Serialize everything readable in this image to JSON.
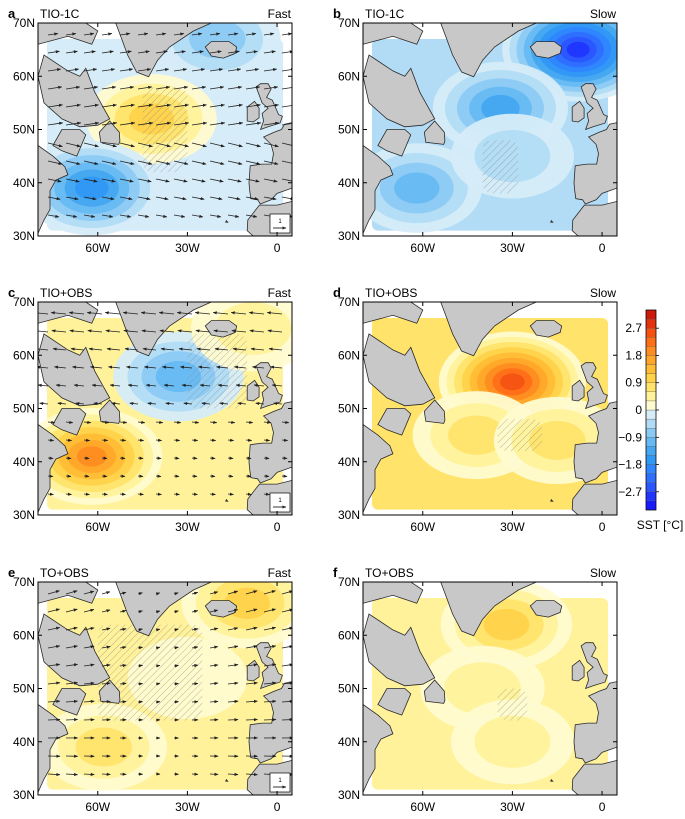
{
  "colors": {
    "land": "#c8c8c8",
    "coast": "#2a2a2a",
    "frame": "#000000",
    "hatch": "#8c8c8c",
    "arrow": "#222222"
  },
  "chart_data": {
    "type": "map-contour",
    "panels": [
      {
        "id": "a",
        "title": "TIO-1C",
        "mode": "Fast",
        "field": "SST response with surface wind vectors",
        "vectors": true,
        "ref_vector": "1",
        "anomalies": [
          {
            "lon": -42,
            "lat": 52,
            "value": 1.2
          },
          {
            "lon": -62,
            "lat": 39,
            "value": -1.8
          },
          {
            "lon": -20,
            "lat": 67,
            "value": -0.9
          }
        ]
      },
      {
        "id": "b",
        "title": "TIO-1C",
        "mode": "Slow",
        "field": "SST response",
        "vectors": false,
        "anomalies": [
          {
            "lon": -8,
            "lat": 65,
            "value": -3.0
          },
          {
            "lon": -34,
            "lat": 54,
            "value": -1.6
          },
          {
            "lon": -62,
            "lat": 39,
            "value": -1.2
          },
          {
            "lon": -30,
            "lat": 45,
            "value": -0.6
          }
        ]
      },
      {
        "id": "c",
        "title": "TIO+OBS",
        "mode": "Fast",
        "field": "SST response with surface wind vectors",
        "vectors": true,
        "ref_vector": "1",
        "anomalies": [
          {
            "lon": -33,
            "lat": 56,
            "value": -1.2
          },
          {
            "lon": -62,
            "lat": 41,
            "value": 2.1
          },
          {
            "lon": -8,
            "lat": 65,
            "value": 0.7
          }
        ]
      },
      {
        "id": "d",
        "title": "TIO+OBS",
        "mode": "Slow",
        "field": "SST response",
        "vectors": false,
        "anomalies": [
          {
            "lon": -30,
            "lat": 55,
            "value": 2.6
          },
          {
            "lon": -42,
            "lat": 45,
            "value": 1.0
          },
          {
            "lon": -15,
            "lat": 44,
            "value": 0.9
          }
        ]
      },
      {
        "id": "e",
        "title": "TO+OBS",
        "mode": "Fast",
        "field": "SST response with surface wind vectors",
        "vectors": true,
        "ref_vector": "1",
        "anomalies": [
          {
            "lon": -10,
            "lat": 66,
            "value": 1.3
          },
          {
            "lon": -58,
            "lat": 39,
            "value": 0.9
          },
          {
            "lon": -30,
            "lat": 52,
            "value": 0.3
          }
        ]
      },
      {
        "id": "f",
        "title": "TO+OBS",
        "mode": "Slow",
        "field": "SST response",
        "vectors": false,
        "anomalies": [
          {
            "lon": -32,
            "lat": 62,
            "value": 1.3
          },
          {
            "lon": -40,
            "lat": 50,
            "value": 0.7
          },
          {
            "lon": -30,
            "lat": 40,
            "value": 0.6
          }
        ]
      }
    ],
    "lon_range": [
      -80,
      5
    ],
    "lat_range": [
      30,
      70
    ],
    "xticks": [
      "60W",
      "30W",
      "0"
    ],
    "xtick_values": [
      -60,
      -30,
      0
    ],
    "yticks": [
      "30N",
      "40N",
      "50N",
      "60N",
      "70N"
    ],
    "ytick_values": [
      30,
      40,
      50,
      60,
      70
    ],
    "colorbar": {
      "label": "SST [°C]",
      "tick_labels": [
        "2.7",
        "1.8",
        "0.9",
        "0",
        "−0.9",
        "−1.8",
        "−2.7"
      ],
      "tick_values": [
        2.7,
        1.8,
        0.9,
        0,
        -0.9,
        -1.8,
        -2.7
      ],
      "levels": [
        -3.3,
        -3.0,
        -2.7,
        -2.4,
        -2.1,
        -1.8,
        -1.5,
        -1.2,
        -0.9,
        -0.6,
        -0.3,
        0,
        0.3,
        0.6,
        0.9,
        1.2,
        1.5,
        1.8,
        2.1,
        2.4,
        2.7,
        3.0,
        3.3
      ],
      "colors": [
        "#1a1aff",
        "#2036ff",
        "#2a55ff",
        "#2f6eff",
        "#2f86ff",
        "#3097f5",
        "#45a7f0",
        "#66b9f2",
        "#8ccaf4",
        "#b2dcf6",
        "#d6ecf8",
        "#fffbd0",
        "#fff29a",
        "#ffe36a",
        "#ffd24a",
        "#ffbd35",
        "#ffa62a",
        "#ff8c20",
        "#ff6f18",
        "#f55212",
        "#e3320e",
        "#cc1a0c"
      ]
    }
  }
}
